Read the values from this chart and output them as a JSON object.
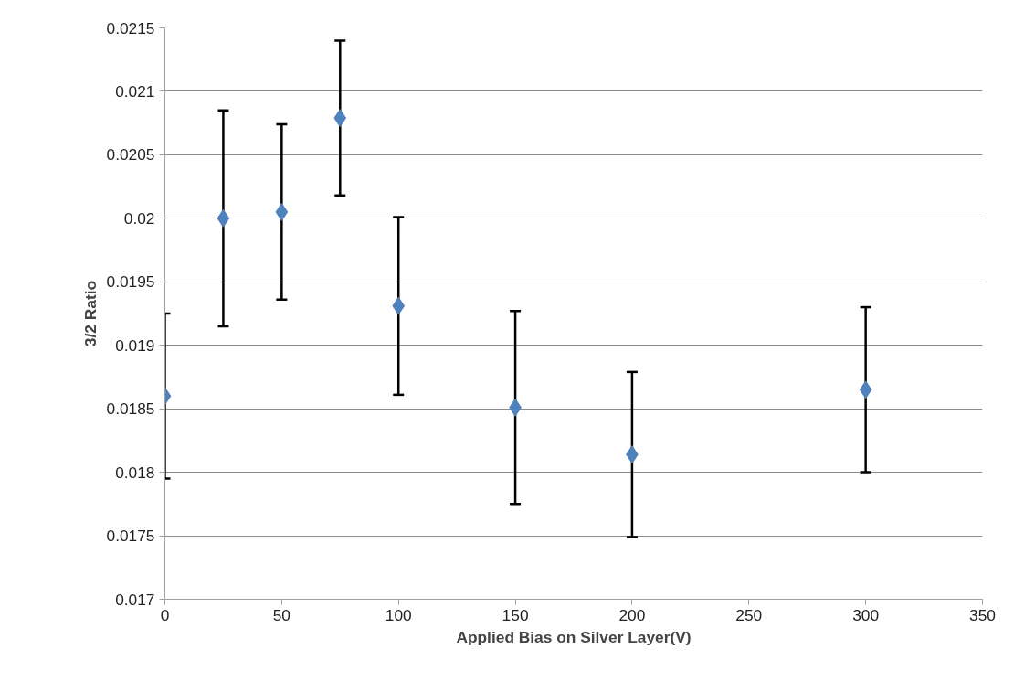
{
  "chart_data": {
    "type": "scatter",
    "xlabel": "Applied Bias on Silver Layer(V)",
    "ylabel": "3/2 Ratio",
    "x": [
      0,
      25,
      50,
      75,
      100,
      150,
      200,
      300
    ],
    "series": [
      {
        "color": "#4f81bd",
        "values": [
          0.0186,
          0.02,
          0.02005,
          0.02079,
          0.01931,
          0.01851,
          0.01814,
          0.01865
        ],
        "errors": [
          0.00065,
          0.00085,
          0.00069,
          0.00061,
          0.0007,
          0.00076,
          0.00065,
          0.00065
        ]
      }
    ],
    "marker": "diamond",
    "grid": "y",
    "xlim": [
      0,
      350
    ],
    "xticks": [
      0,
      50,
      100,
      150,
      200,
      250,
      300,
      350
    ],
    "ylim": [
      0.017,
      0.0215
    ],
    "yticks": [
      0.017,
      0.0175,
      0.018,
      0.0185,
      0.019,
      0.0195,
      0.02,
      0.0205,
      0.021,
      0.0215
    ]
  }
}
